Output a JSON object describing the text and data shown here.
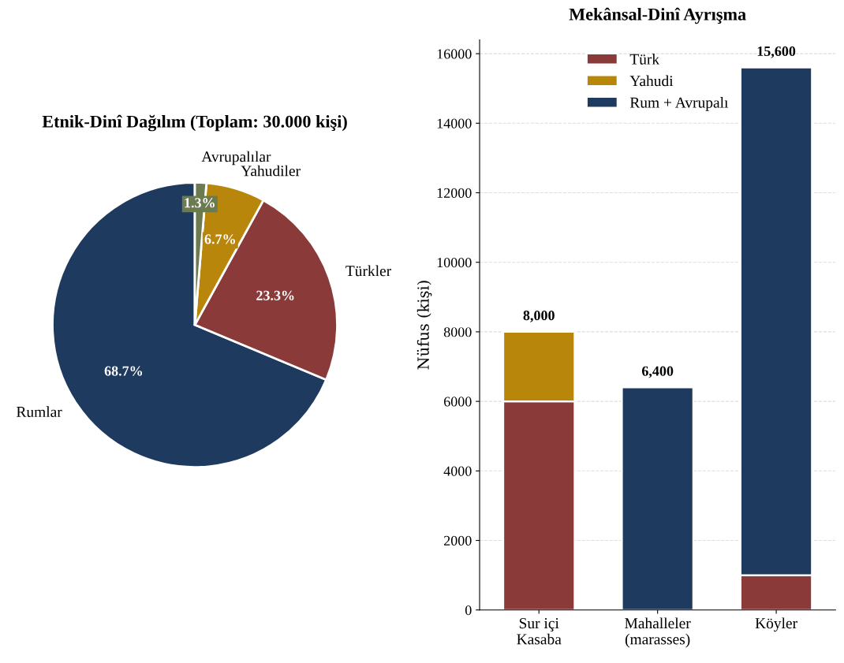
{
  "chart_data": [
    {
      "type": "pie",
      "title": "Etnik-Dinî Dağılım (Toplam: 30.000 kişi)",
      "categories": [
        "Rumlar",
        "Türkler",
        "Yahudiler",
        "Avrupalılar"
      ],
      "values": [
        68.7,
        23.3,
        6.7,
        1.3
      ],
      "colors": [
        "#1f3a5f",
        "#8b3a3a",
        "#b8860b",
        "#6b7a4f"
      ],
      "value_labels": [
        "68.7%",
        "23.3%",
        "6.7%",
        "1.3%"
      ]
    },
    {
      "type": "bar",
      "title": "Mekânsal-Dinî Ayrışma",
      "categories": [
        "Sur içi\nKasaba",
        "Mahalleler\n(marasses)",
        "Köyler"
      ],
      "stacked": true,
      "ylabel": "Nüfus (kişi)",
      "ylim": [
        0,
        16400
      ],
      "yticks": [
        0,
        2000,
        4000,
        6000,
        8000,
        10000,
        12000,
        14000,
        16000
      ],
      "grid": "y",
      "legend": "top",
      "totals": [
        "8,000",
        "6,400",
        "15,600"
      ],
      "series": [
        {
          "name": "Türk",
          "color": "#8b3a3a",
          "values": [
            6000,
            0,
            1000
          ]
        },
        {
          "name": "Yahudi",
          "color": "#b8860b",
          "values": [
            2000,
            0,
            0
          ]
        },
        {
          "name": "Rum + Avrupalı",
          "color": "#1f3a5f",
          "values": [
            0,
            6400,
            14600
          ]
        }
      ]
    }
  ]
}
